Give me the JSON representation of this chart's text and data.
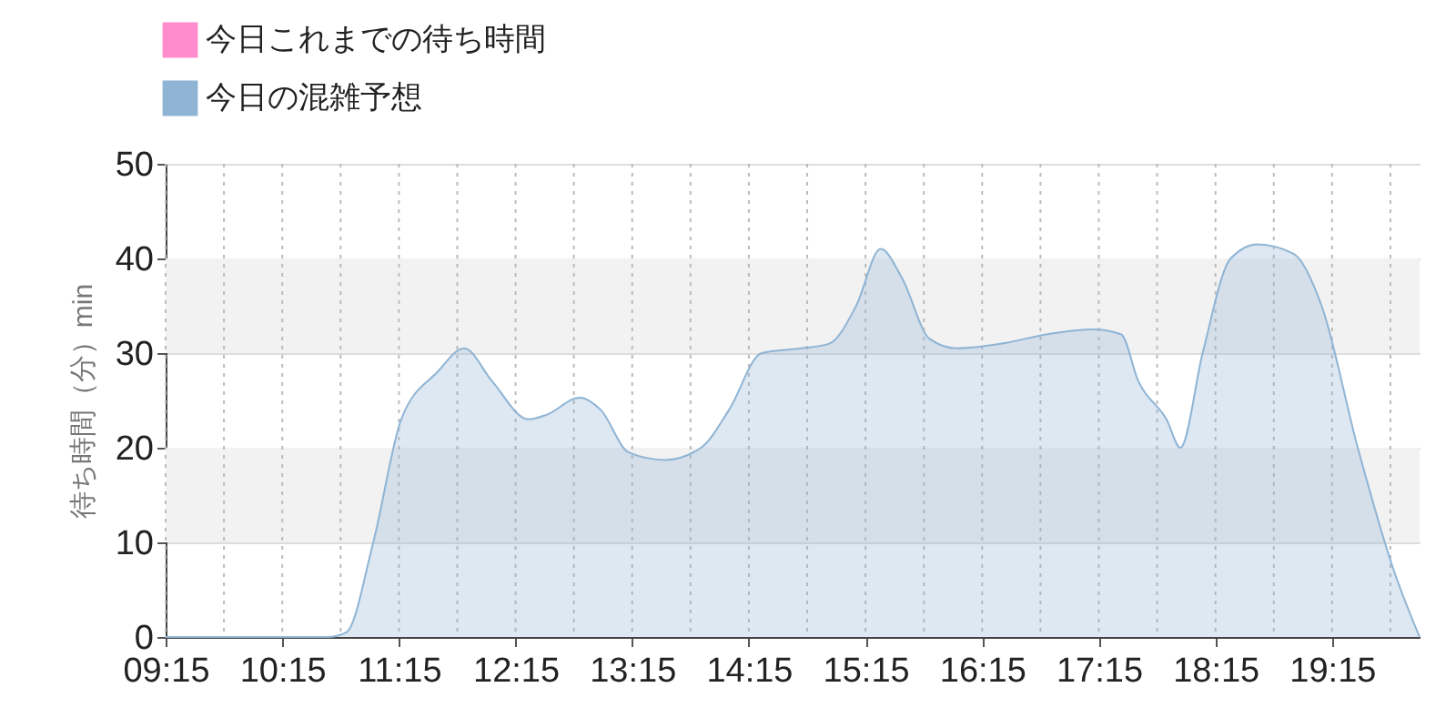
{
  "chart_data": {
    "type": "area",
    "ylabel": "待ち時間（分）min",
    "legend": "top left",
    "grid": true,
    "xlim": [
      9.25,
      20.0
    ],
    "xticks": [
      {
        "value": 9.25,
        "label": "09:15"
      },
      {
        "value": 9.75,
        "label": null
      },
      {
        "value": 10.25,
        "label": "10:15"
      },
      {
        "value": 10.75,
        "label": null
      },
      {
        "value": 11.25,
        "label": "11:15"
      },
      {
        "value": 11.75,
        "label": null
      },
      {
        "value": 12.25,
        "label": "12:15"
      },
      {
        "value": 12.75,
        "label": null
      },
      {
        "value": 13.25,
        "label": "13:15"
      },
      {
        "value": 13.75,
        "label": null
      },
      {
        "value": 14.25,
        "label": "14:15"
      },
      {
        "value": 14.75,
        "label": null
      },
      {
        "value": 15.25,
        "label": "15:15"
      },
      {
        "value": 15.75,
        "label": null
      },
      {
        "value": 16.25,
        "label": "16:15"
      },
      {
        "value": 16.75,
        "label": null
      },
      {
        "value": 17.25,
        "label": "17:15"
      },
      {
        "value": 17.75,
        "label": null
      },
      {
        "value": 18.25,
        "label": "18:15"
      },
      {
        "value": 18.75,
        "label": null
      },
      {
        "value": 19.25,
        "label": "19:15"
      },
      {
        "value": 19.75,
        "label": null
      }
    ],
    "ylim": [
      0,
      50
    ],
    "yticks": [
      0,
      10,
      20,
      30,
      40,
      50
    ],
    "bands": [
      {
        "axis": "y",
        "from": 10,
        "to": 20,
        "label": null,
        "color": "#f2f2f2"
      },
      {
        "axis": "y",
        "from": 30,
        "to": 40,
        "label": null,
        "color": "#f2f2f2"
      }
    ],
    "x": [
      9.25,
      10.17,
      10.64,
      10.8,
      11.03,
      11.27,
      11.58,
      11.81,
      12.05,
      12.36,
      12.52,
      12.8,
      12.98,
      13.22,
      13.53,
      13.84,
      14.08,
      14.36,
      14.7,
      14.94,
      15.17,
      15.38,
      15.56,
      15.8,
      16.03,
      16.42,
      16.81,
      17.2,
      17.44,
      17.59,
      17.83,
      17.95,
      18.14,
      18.38,
      18.61,
      18.92,
      19.16,
      19.47,
      19.78,
      20.0
    ],
    "series": [
      {
        "name": "今日これまでの待ち時間",
        "color": "#ff8ccc",
        "values": [
          null,
          null,
          null,
          null,
          null,
          null,
          null,
          null,
          null,
          null,
          null,
          null,
          null,
          null,
          null,
          null,
          null,
          null,
          null,
          null,
          null,
          null,
          null,
          null,
          null,
          null,
          null,
          null,
          null,
          null,
          null,
          null,
          null,
          null,
          null,
          null,
          null,
          null,
          null,
          null
        ]
      },
      {
        "name": "今日の混雑予想",
        "color": "#8fb4d4",
        "values": [
          0,
          0,
          0,
          0.5,
          10,
          23,
          28,
          30.5,
          27,
          23,
          23.5,
          25.3,
          24,
          19.5,
          18.7,
          20,
          24,
          30,
          30.5,
          31,
          35,
          41,
          38,
          31.5,
          30.5,
          31,
          32,
          32.5,
          32,
          27,
          23,
          20,
          30,
          40,
          41.5,
          40.5,
          35,
          20,
          7,
          0
        ]
      }
    ]
  }
}
